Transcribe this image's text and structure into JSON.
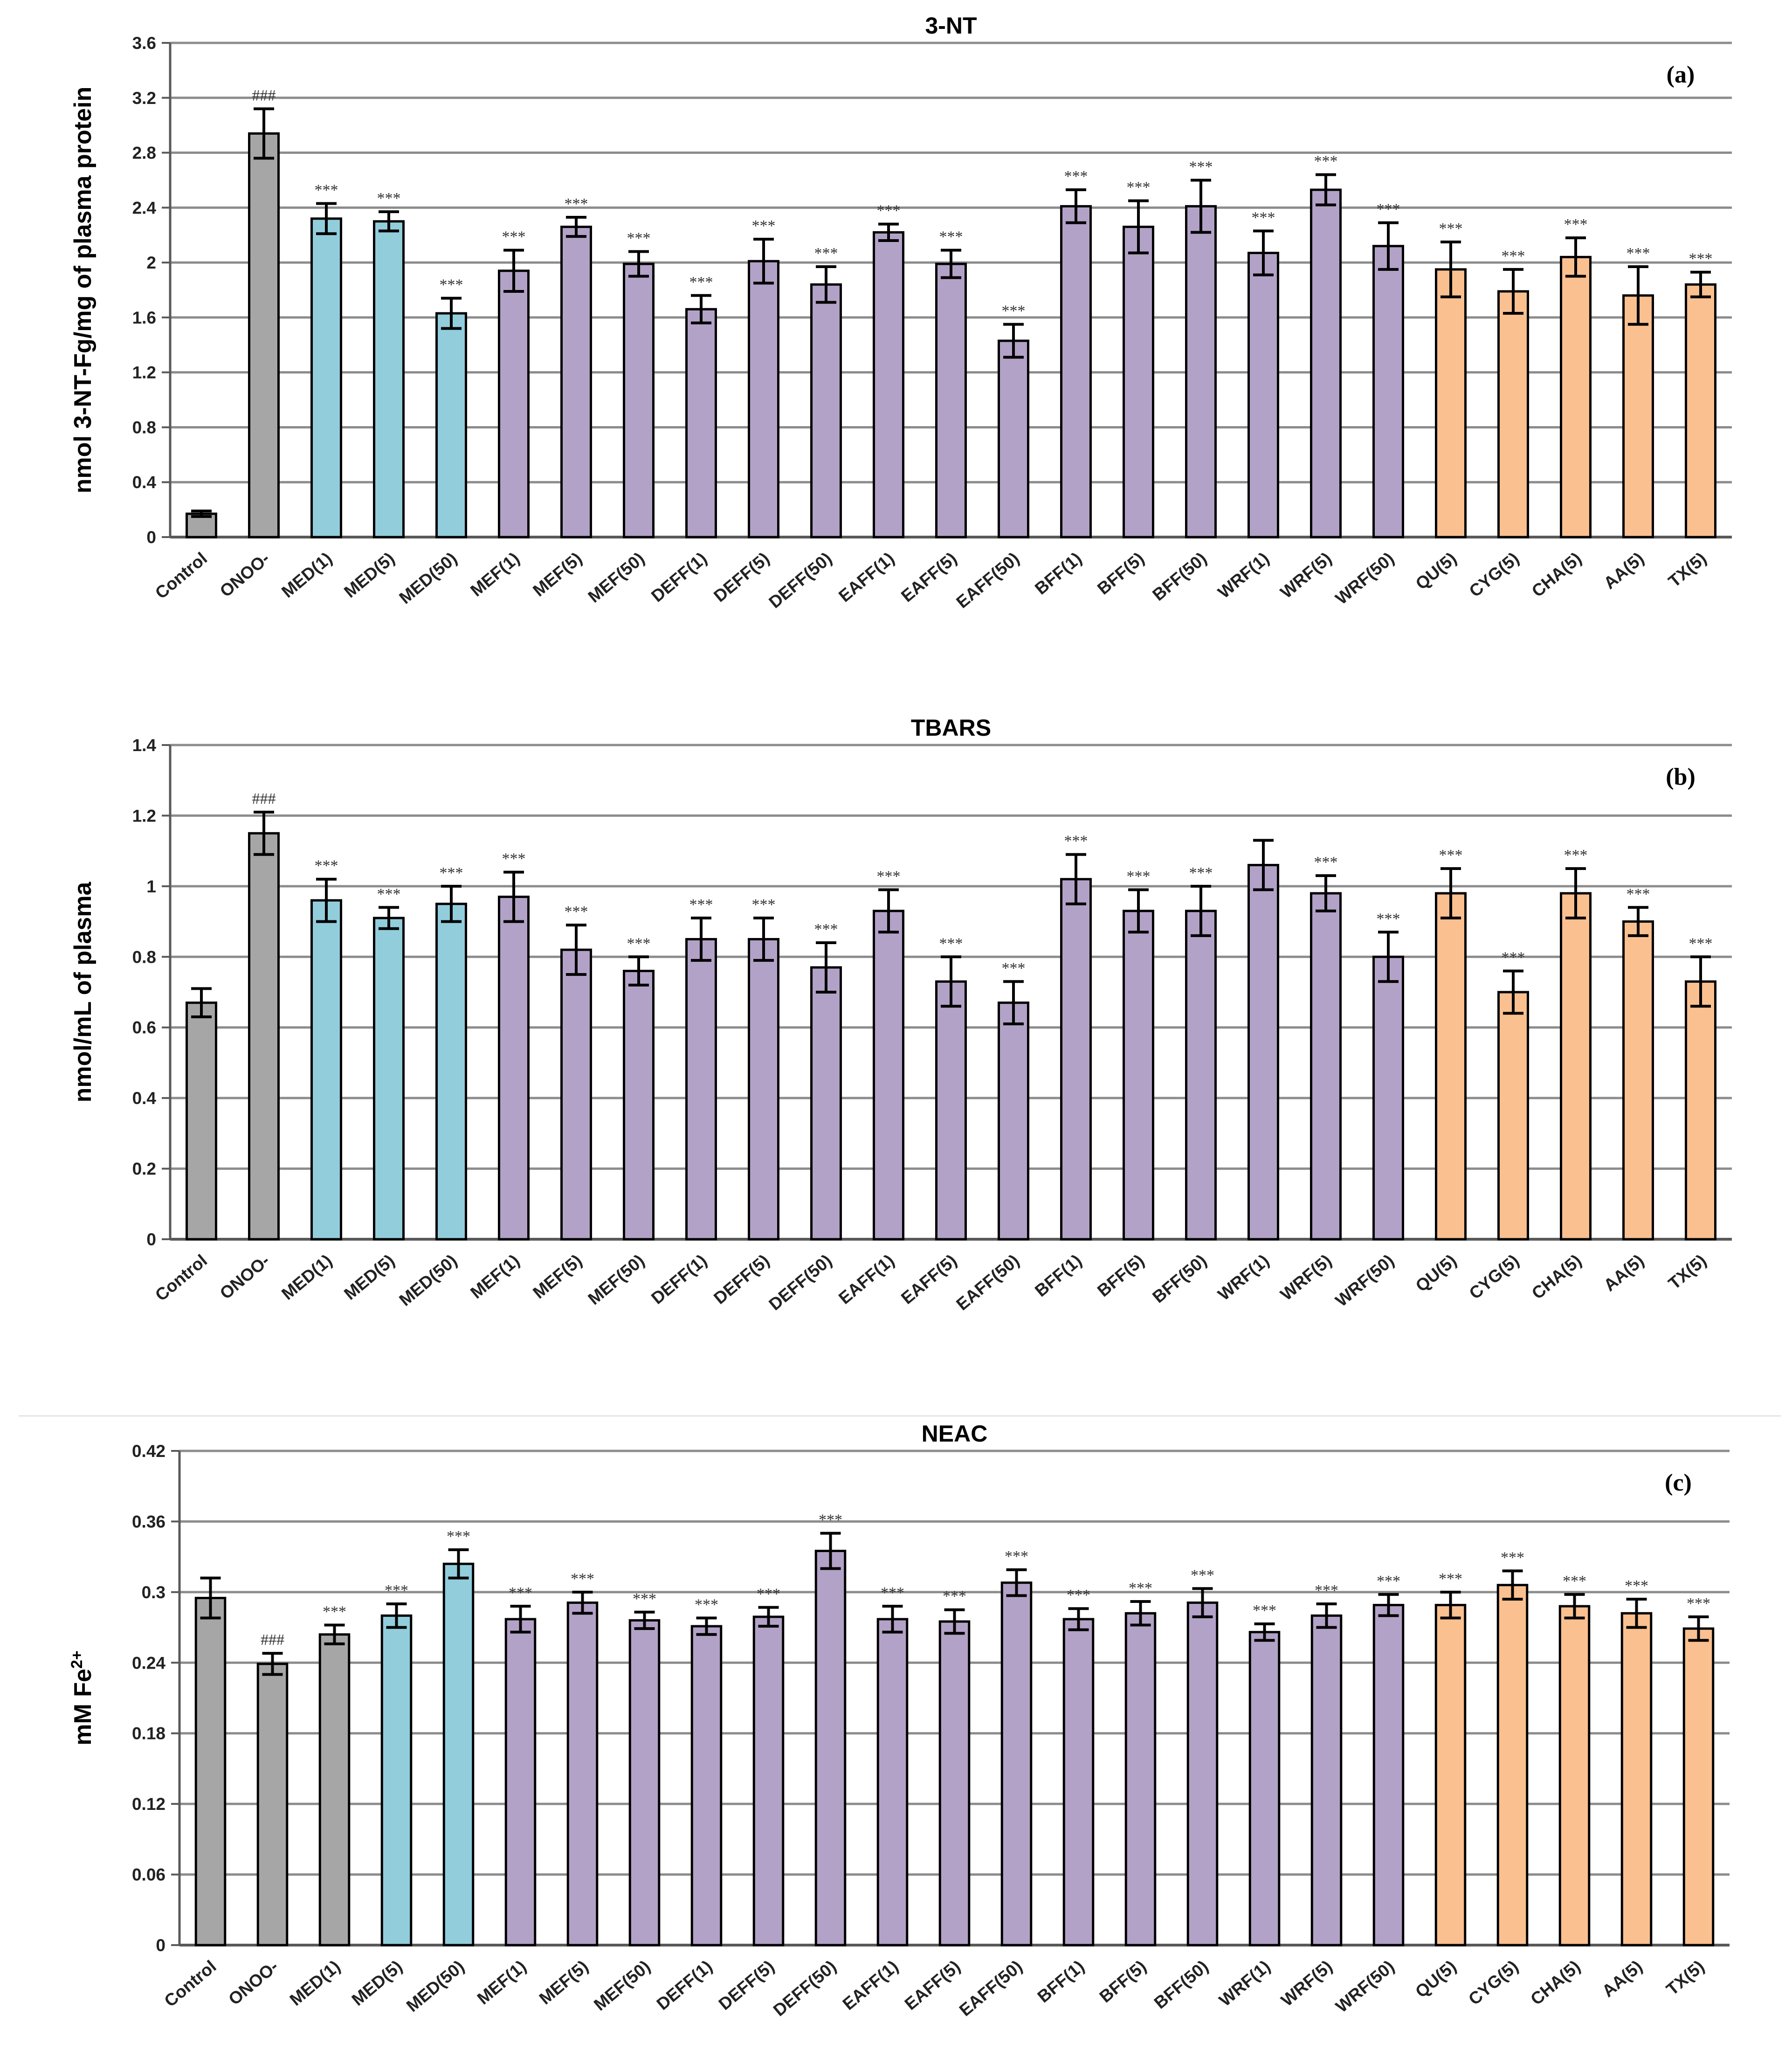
{
  "colors": {
    "gray": "#a6a6a6",
    "blue": "#92cddc",
    "purple": "#b3a2c7",
    "orange": "#fac090",
    "grid": "#8c8c8c",
    "bar_stroke": "#000000"
  },
  "chart_data": [
    {
      "type": "bar",
      "title": "3-NT",
      "panel_label": "(a)",
      "ylabel": "nmol 3-NT-Fg/mg of plasma protein",
      "xlabel": "",
      "ylim": [
        0,
        3.6
      ],
      "yticks": [
        "0",
        "0.4",
        "0.8",
        "1.2",
        "1.6",
        "2",
        "2.4",
        "2.8",
        "3.2",
        "3.6"
      ],
      "grid": true,
      "categories": [
        "Control",
        "ONOO-",
        "MED(1)",
        "MED(5)",
        "MED(50)",
        "MEF(1)",
        "MEF(5)",
        "MEF(50)",
        "DEFF(1)",
        "DEFF(5)",
        "DEFF(50)",
        "EAFF(1)",
        "EAFF(5)",
        "EAFF(50)",
        "BFF(1)",
        "BFF(5)",
        "BFF(50)",
        "WRF(1)",
        "WRF(5)",
        "WRF(50)",
        "QU(5)",
        "CYG(5)",
        "CHA(5)",
        "AA(5)",
        "TX(5)"
      ],
      "bar_colors": [
        "gray",
        "gray",
        "blue",
        "blue",
        "blue",
        "purple",
        "purple",
        "purple",
        "purple",
        "purple",
        "purple",
        "purple",
        "purple",
        "purple",
        "purple",
        "purple",
        "purple",
        "purple",
        "purple",
        "purple",
        "orange",
        "orange",
        "orange",
        "orange",
        "orange"
      ],
      "values": [
        0.17,
        2.94,
        2.32,
        2.3,
        1.63,
        1.94,
        2.26,
        1.99,
        1.66,
        2.01,
        1.84,
        2.22,
        1.99,
        1.43,
        2.41,
        2.26,
        2.41,
        2.07,
        2.53,
        2.12,
        1.95,
        1.79,
        2.04,
        1.76,
        1.84
      ],
      "errors": [
        0.02,
        0.18,
        0.11,
        0.07,
        0.11,
        0.15,
        0.07,
        0.09,
        0.1,
        0.16,
        0.13,
        0.06,
        0.1,
        0.12,
        0.12,
        0.19,
        0.19,
        0.16,
        0.11,
        0.17,
        0.2,
        0.16,
        0.14,
        0.21,
        0.09
      ],
      "annotations": [
        "",
        "###",
        "***",
        "***",
        "***",
        "***",
        "***",
        "***",
        "***",
        "***",
        "***",
        "***",
        "***",
        "***",
        "***",
        "***",
        "***",
        "***",
        "***",
        "***",
        "***",
        "***",
        "***",
        "***",
        "***"
      ]
    },
    {
      "type": "bar",
      "title": "TBARS",
      "panel_label": "(b)",
      "ylabel": "nmol/mL of plasma",
      "xlabel": "",
      "ylim": [
        0,
        1.4
      ],
      "yticks": [
        "0",
        "0.2",
        "0.4",
        "0.6",
        "0.8",
        "1",
        "1.2",
        "1.4"
      ],
      "grid": true,
      "categories": [
        "Control",
        "ONOO-",
        "MED(1)",
        "MED(5)",
        "MED(50)",
        "MEF(1)",
        "MEF(5)",
        "MEF(50)",
        "DEFF(1)",
        "DEFF(5)",
        "DEFF(50)",
        "EAFF(1)",
        "EAFF(5)",
        "EAFF(50)",
        "BFF(1)",
        "BFF(5)",
        "BFF(50)",
        "WRF(1)",
        "WRF(5)",
        "WRF(50)",
        "QU(5)",
        "CYG(5)",
        "CHA(5)",
        "AA(5)",
        "TX(5)"
      ],
      "bar_colors": [
        "gray",
        "gray",
        "blue",
        "blue",
        "blue",
        "purple",
        "purple",
        "purple",
        "purple",
        "purple",
        "purple",
        "purple",
        "purple",
        "purple",
        "purple",
        "purple",
        "purple",
        "purple",
        "purple",
        "purple",
        "orange",
        "orange",
        "orange",
        "orange",
        "orange"
      ],
      "values": [
        0.67,
        1.15,
        0.96,
        0.91,
        0.95,
        0.97,
        0.82,
        0.76,
        0.85,
        0.85,
        0.77,
        0.93,
        0.73,
        0.67,
        1.02,
        0.93,
        0.93,
        1.06,
        0.98,
        0.8,
        0.98,
        0.7,
        0.98,
        0.9,
        0.73
      ],
      "errors": [
        0.04,
        0.06,
        0.06,
        0.03,
        0.05,
        0.07,
        0.07,
        0.04,
        0.06,
        0.06,
        0.07,
        0.06,
        0.07,
        0.06,
        0.07,
        0.06,
        0.07,
        0.07,
        0.05,
        0.07,
        0.07,
        0.06,
        0.07,
        0.04,
        0.07
      ],
      "annotations": [
        "",
        "###",
        "***",
        "***",
        "***",
        "***",
        "***",
        "***",
        "***",
        "***",
        "***",
        "***",
        "***",
        "***",
        "***",
        "***",
        "***",
        "",
        "***",
        "***",
        "***",
        "***",
        "***",
        "***",
        "***"
      ]
    },
    {
      "type": "bar",
      "title": "NEAC",
      "panel_label": "(c)",
      "ylabel": "mM Fe",
      "ylabel_sup": "2+",
      "xlabel": "",
      "ylim": [
        0,
        0.42
      ],
      "yticks": [
        "0",
        "0.06",
        "0.12",
        "0.18",
        "0.24",
        "0.3",
        "0.36",
        "0.42"
      ],
      "grid": true,
      "categories": [
        "Control",
        "ONOO-",
        "MED(1)",
        "MED(5)",
        "MED(50)",
        "MEF(1)",
        "MEF(5)",
        "MEF(50)",
        "DEFF(1)",
        "DEFF(5)",
        "DEFF(50)",
        "EAFF(1)",
        "EAFF(5)",
        "EAFF(50)",
        "BFF(1)",
        "BFF(5)",
        "BFF(50)",
        "WRF(1)",
        "WRF(5)",
        "WRF(50)",
        "QU(5)",
        "CYG(5)",
        "CHA(5)",
        "AA(5)",
        "TX(5)"
      ],
      "bar_colors": [
        "gray",
        "gray",
        "gray",
        "blue",
        "blue",
        "purple",
        "purple",
        "purple",
        "purple",
        "purple",
        "purple",
        "purple",
        "purple",
        "purple",
        "purple",
        "purple",
        "purple",
        "purple",
        "purple",
        "purple",
        "orange",
        "orange",
        "orange",
        "orange",
        "orange"
      ],
      "values": [
        0.295,
        0.239,
        0.264,
        0.28,
        0.324,
        0.277,
        0.291,
        0.276,
        0.271,
        0.279,
        0.335,
        0.277,
        0.275,
        0.308,
        0.277,
        0.282,
        0.291,
        0.266,
        0.28,
        0.289,
        0.289,
        0.306,
        0.288,
        0.282,
        0.269
      ],
      "errors": [
        0.017,
        0.009,
        0.008,
        0.01,
        0.012,
        0.011,
        0.009,
        0.007,
        0.007,
        0.008,
        0.015,
        0.011,
        0.01,
        0.011,
        0.009,
        0.01,
        0.012,
        0.007,
        0.01,
        0.009,
        0.011,
        0.012,
        0.01,
        0.012,
        0.01
      ],
      "annotations": [
        "",
        "###",
        "***",
        "***",
        "***",
        "***",
        "***",
        "***",
        "***",
        "***",
        "***",
        "***",
        "***",
        "***",
        "***",
        "***",
        "***",
        "***",
        "***",
        "***",
        "***",
        "***",
        "***",
        "***",
        "***"
      ]
    }
  ]
}
